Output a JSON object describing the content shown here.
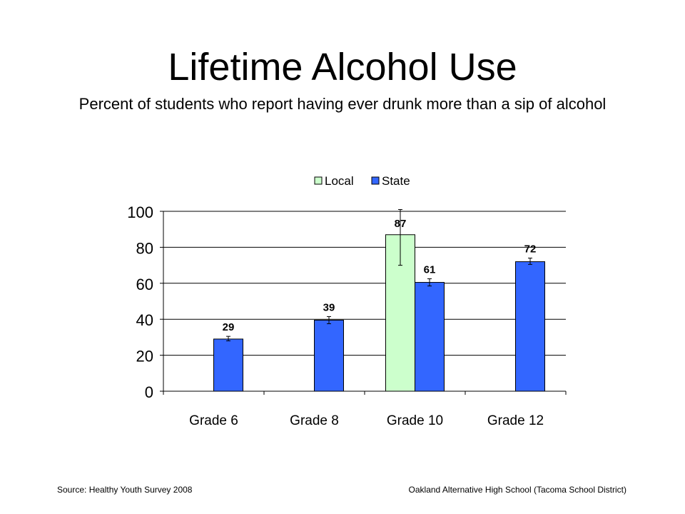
{
  "slide": {
    "title": "Lifetime Alcohol Use",
    "subtitle": "Percent of students who report having ever drunk more than a sip of alcohol",
    "source": "Source: Healthy Youth Survey 2008",
    "school": "Oakland Alternative High School (Tacoma School District)"
  },
  "chart_data": {
    "type": "bar",
    "categories": [
      "Grade 6",
      "Grade 8",
      "Grade 10",
      "Grade 12"
    ],
    "series": [
      {
        "name": "Local",
        "color": "#ccffcc",
        "values": [
          null,
          null,
          87,
          null
        ],
        "labels": [
          null,
          null,
          "87",
          null
        ],
        "error_low": [
          null,
          null,
          70,
          null
        ],
        "error_high": [
          null,
          null,
          101,
          null
        ]
      },
      {
        "name": "State",
        "color": "#3366ff",
        "values": [
          29,
          39.5,
          60.5,
          72
        ],
        "labels": [
          "29",
          "39",
          "61",
          "72"
        ],
        "error_low": [
          28,
          37.5,
          58.5,
          70.5
        ],
        "error_high": [
          30.5,
          41.5,
          62.5,
          74
        ]
      }
    ],
    "ylim": [
      0,
      100
    ],
    "yticks": [
      0,
      20,
      40,
      60,
      80,
      100
    ],
    "grid": true,
    "legend": "top-center"
  }
}
